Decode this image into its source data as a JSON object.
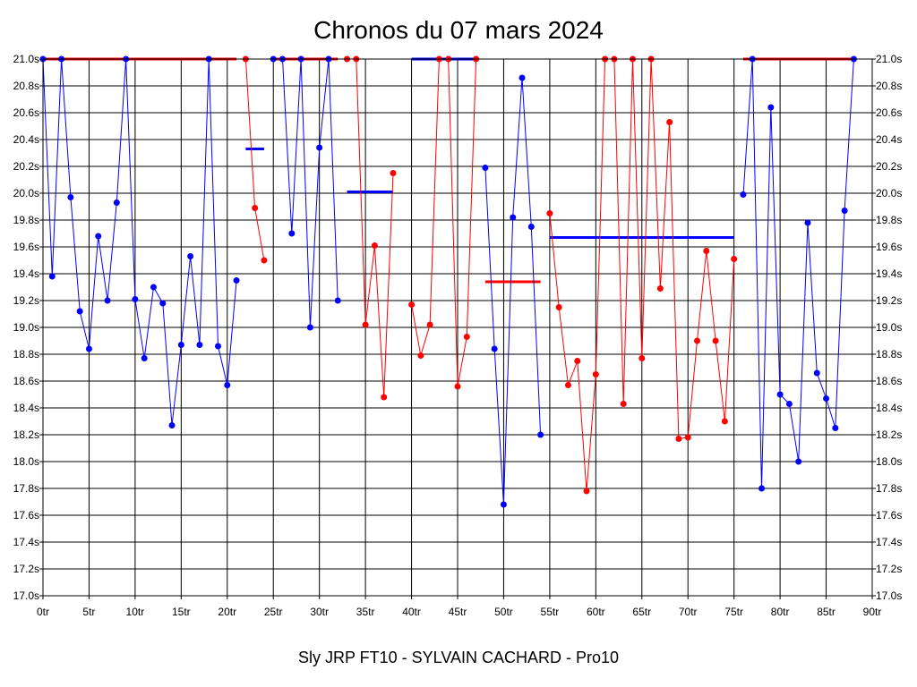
{
  "chart_data": {
    "type": "line",
    "title": "Chronos du 07 mars 2024",
    "caption": "Sly JRP FT10 - SYLVAIN CACHARD - Pro10",
    "xlim": [
      0,
      90
    ],
    "ylim": [
      17.0,
      21.0
    ],
    "x_ticks": [
      "0tr",
      "5tr",
      "10tr",
      "15tr",
      "20tr",
      "25tr",
      "30tr",
      "35tr",
      "40tr",
      "45tr",
      "50tr",
      "55tr",
      "60tr",
      "65tr",
      "70tr",
      "75tr",
      "80tr",
      "85tr",
      "90tr"
    ],
    "y_ticks": [
      "17.0s",
      "17.2s",
      "17.4s",
      "17.6s",
      "17.8s",
      "18.0s",
      "18.2s",
      "18.4s",
      "18.6s",
      "18.8s",
      "19.0s",
      "19.2s",
      "19.4s",
      "19.6s",
      "19.8s",
      "20.0s",
      "20.2s",
      "20.4s",
      "20.6s",
      "20.8s",
      "21.0s"
    ],
    "grid": true,
    "colors": {
      "blue": "#0000ff",
      "red": "#ff0000",
      "grid": "#000000"
    },
    "segments": [
      {
        "color": "blue",
        "points": [
          [
            0,
            21.0
          ],
          [
            1,
            19.38
          ],
          [
            2,
            21.0
          ],
          [
            3,
            19.97
          ],
          [
            4,
            19.12
          ],
          [
            5,
            18.84
          ],
          [
            6,
            19.68
          ],
          [
            7,
            19.2
          ],
          [
            8,
            19.93
          ],
          [
            9,
            21.0
          ],
          [
            10,
            19.21
          ],
          [
            11,
            18.77
          ],
          [
            12,
            19.3
          ],
          [
            13,
            19.18
          ],
          [
            14,
            18.27
          ],
          [
            15,
            18.87
          ],
          [
            16,
            19.53
          ],
          [
            17,
            18.87
          ],
          [
            18,
            21.0
          ],
          [
            19,
            18.86
          ],
          [
            20,
            18.57
          ],
          [
            21,
            19.35
          ]
        ]
      },
      {
        "color": "red",
        "points": [
          [
            22,
            21.0
          ],
          [
            23,
            19.89
          ],
          [
            24,
            19.5
          ]
        ]
      },
      {
        "color": "blue",
        "points": [
          [
            25,
            21.0
          ],
          [
            26,
            21.0
          ],
          [
            27,
            19.7
          ],
          [
            28,
            21.0
          ],
          [
            29,
            19.0
          ],
          [
            30,
            20.34
          ],
          [
            31,
            21.0
          ],
          [
            32,
            19.2
          ]
        ]
      },
      {
        "color": "red",
        "points": [
          [
            33,
            21.0
          ],
          [
            34,
            21.0
          ],
          [
            35,
            19.02
          ],
          [
            36,
            19.61
          ],
          [
            37,
            18.48
          ],
          [
            38,
            20.15
          ]
        ]
      },
      {
        "color": "red",
        "points": [
          [
            40,
            19.17
          ],
          [
            41,
            18.79
          ],
          [
            42,
            19.02
          ],
          [
            43,
            21.0
          ],
          [
            44,
            21.0
          ],
          [
            45,
            18.56
          ],
          [
            46,
            18.93
          ],
          [
            47,
            21.0
          ]
        ]
      },
      {
        "color": "blue",
        "points": [
          [
            48,
            20.19
          ],
          [
            49,
            18.84
          ],
          [
            50,
            17.68
          ],
          [
            51,
            19.82
          ],
          [
            52,
            20.86
          ],
          [
            53,
            19.75
          ],
          [
            54,
            18.2
          ]
        ]
      },
      {
        "color": "red",
        "points": [
          [
            55,
            19.85
          ],
          [
            56,
            19.15
          ],
          [
            57,
            18.57
          ],
          [
            58,
            18.75
          ],
          [
            59,
            17.78
          ],
          [
            60,
            18.65
          ],
          [
            61,
            21.0
          ],
          [
            62,
            21.0
          ],
          [
            63,
            18.43
          ],
          [
            64,
            21.0
          ],
          [
            65,
            18.77
          ],
          [
            66,
            21.0
          ],
          [
            67,
            19.29
          ],
          [
            68,
            20.53
          ],
          [
            69,
            18.17
          ],
          [
            70,
            18.18
          ],
          [
            71,
            18.9
          ],
          [
            72,
            19.57
          ],
          [
            73,
            18.9
          ],
          [
            74,
            18.3
          ],
          [
            75,
            19.51
          ]
        ]
      },
      {
        "color": "blue",
        "points": [
          [
            76,
            19.99
          ],
          [
            77,
            21.0
          ],
          [
            78,
            17.8
          ],
          [
            79,
            20.64
          ],
          [
            80,
            18.5
          ],
          [
            81,
            18.43
          ],
          [
            82,
            18.0
          ],
          [
            83,
            19.78
          ],
          [
            84,
            18.66
          ],
          [
            85,
            18.47
          ],
          [
            86,
            18.25
          ],
          [
            87,
            19.87
          ],
          [
            88,
            21.0
          ]
        ]
      }
    ],
    "level_lines": [
      {
        "color": "red",
        "x": [
          0,
          21
        ],
        "y": 21.0
      },
      {
        "color": "blue",
        "x": [
          22,
          24
        ],
        "y": 20.33
      },
      {
        "color": "red",
        "x": [
          25,
          32
        ],
        "y": 21.0
      },
      {
        "color": "blue",
        "x": [
          33,
          38
        ],
        "y": 20.01
      },
      {
        "color": "blue",
        "x": [
          40,
          47
        ],
        "y": 21.0
      },
      {
        "color": "red",
        "x": [
          48,
          54
        ],
        "y": 19.34
      },
      {
        "color": "blue",
        "x": [
          55,
          75
        ],
        "y": 19.67
      },
      {
        "color": "red",
        "x": [
          76,
          88
        ],
        "y": 21.0
      }
    ]
  }
}
